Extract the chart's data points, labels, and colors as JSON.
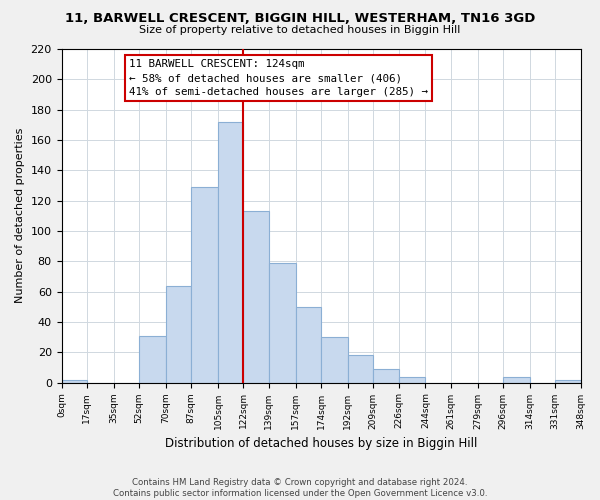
{
  "title": "11, BARWELL CRESCENT, BIGGIN HILL, WESTERHAM, TN16 3GD",
  "subtitle": "Size of property relative to detached houses in Biggin Hill",
  "xlabel": "Distribution of detached houses by size in Biggin Hill",
  "ylabel": "Number of detached properties",
  "bar_color": "#c8d9ee",
  "bar_edge_color": "#8bafd4",
  "bin_edges": [
    0,
    17,
    35,
    52,
    70,
    87,
    105,
    122,
    139,
    157,
    174,
    192,
    209,
    226,
    244,
    261,
    279,
    296,
    314,
    331,
    348
  ],
  "bar_heights": [
    2,
    0,
    0,
    31,
    64,
    129,
    172,
    113,
    79,
    50,
    30,
    18,
    9,
    4,
    0,
    0,
    0,
    4,
    0,
    2
  ],
  "tick_labels": [
    "0sqm",
    "17sqm",
    "35sqm",
    "52sqm",
    "70sqm",
    "87sqm",
    "105sqm",
    "122sqm",
    "139sqm",
    "157sqm",
    "174sqm",
    "192sqm",
    "209sqm",
    "226sqm",
    "244sqm",
    "261sqm",
    "279sqm",
    "296sqm",
    "314sqm",
    "331sqm",
    "348sqm"
  ],
  "vline_x": 122,
  "vline_color": "#cc0000",
  "ann_line1": "11 BARWELL CRESCENT: 124sqm",
  "ann_line2": "← 58% of detached houses are smaller (406)",
  "ann_line3": "41% of semi-detached houses are larger (285) →",
  "ylim": [
    0,
    220
  ],
  "yticks": [
    0,
    20,
    40,
    60,
    80,
    100,
    120,
    140,
    160,
    180,
    200,
    220
  ],
  "footer_text": "Contains HM Land Registry data © Crown copyright and database right 2024.\nContains public sector information licensed under the Open Government Licence v3.0.",
  "bg_color": "#f0f0f0",
  "plot_bg_color": "#ffffff",
  "grid_color": "#d0d8e0"
}
